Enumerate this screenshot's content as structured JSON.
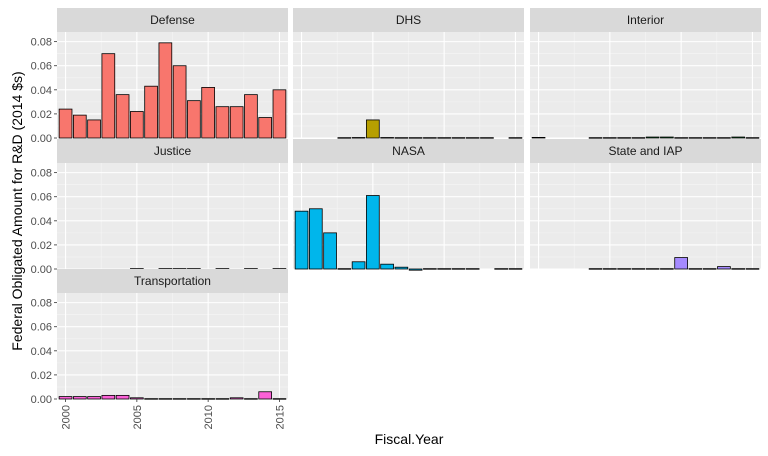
{
  "chart_data": {
    "type": "bar",
    "xlabel": "Fiscal.Year",
    "ylabel": "Federal Obligated Amount for R&D (2014 $s)",
    "ylim": [
      0,
      0.088
    ],
    "yticks": [
      "0.00",
      "0.02",
      "0.04",
      "0.06",
      "0.08"
    ],
    "yticks_values": [
      0,
      0.02,
      0.04,
      0.06,
      0.08
    ],
    "xlim": [
      1999.4,
      2015.6
    ],
    "xticks": [
      "2000",
      "2005",
      "2010",
      "2015"
    ],
    "xticks_values": [
      2000,
      2005,
      2010,
      2015
    ],
    "grid": true,
    "legend": "none",
    "facets": [
      {
        "name": "Defense",
        "color": "#F8766D",
        "x": [
          2000,
          2001,
          2002,
          2003,
          2004,
          2005,
          2006,
          2007,
          2008,
          2009,
          2010,
          2011,
          2012,
          2013,
          2014,
          2015
        ],
        "values": [
          0.024,
          0.019,
          0.015,
          0.07,
          0.036,
          0.022,
          0.043,
          0.079,
          0.06,
          0.031,
          0.042,
          0.026,
          0.026,
          0.036,
          0.017,
          0.04
        ]
      },
      {
        "name": "DHS",
        "color": "#B79F00",
        "x": [
          2003,
          2004,
          2005,
          2006,
          2007,
          2008,
          2009,
          2010,
          2011,
          2012,
          2013,
          2015
        ],
        "values": [
          0.0003,
          0.0004,
          0.015,
          0.0004,
          0.0003,
          0.0003,
          0.0003,
          0.0003,
          0.0003,
          0.0003,
          0.0003,
          0.0003
        ]
      },
      {
        "name": "Interior",
        "color": "#00BA38",
        "x": [
          2000,
          2004,
          2005,
          2006,
          2007,
          2008,
          2009,
          2010,
          2011,
          2012,
          2013,
          2014,
          2015
        ],
        "values": [
          0.0005,
          0.0003,
          0.0003,
          0.0003,
          0.0003,
          0.0008,
          0.0008,
          0.0003,
          0.0003,
          0.0003,
          0.0003,
          0.0008,
          0.0003
        ]
      },
      {
        "name": "Justice",
        "color": "#00BFC4",
        "x": [
          2005,
          2007,
          2008,
          2009,
          2011,
          2013,
          2015
        ],
        "values": [
          0.0003,
          0.0003,
          0.0003,
          0.0003,
          0.0003,
          0.0003,
          0.0003
        ]
      },
      {
        "name": "NASA",
        "color": "#00B6EB",
        "x": [
          2000,
          2001,
          2002,
          2003,
          2004,
          2005,
          2006,
          2007,
          2008,
          2009,
          2010,
          2011,
          2012,
          2014,
          2015
        ],
        "values": [
          0.048,
          0.05,
          0.03,
          0.0003,
          0.006,
          0.061,
          0.004,
          0.0015,
          -0.001,
          0.0003,
          0.0003,
          0.0003,
          0.0003,
          0.0003,
          0.0003
        ]
      },
      {
        "name": "State and IAP",
        "color": "#A58AFF",
        "x": [
          2004,
          2005,
          2006,
          2007,
          2008,
          2009,
          2010,
          2011,
          2012,
          2013,
          2014,
          2015
        ],
        "values": [
          0.0003,
          0.0003,
          0.0003,
          0.0003,
          0.0003,
          0.0003,
          0.0095,
          0.0003,
          0.0003,
          0.002,
          0.0003,
          0.0003
        ]
      },
      {
        "name": "Transportation",
        "color": "#FB61D7",
        "x": [
          2000,
          2001,
          2002,
          2003,
          2004,
          2005,
          2006,
          2007,
          2008,
          2009,
          2010,
          2011,
          2012,
          2013,
          2014,
          2015
        ],
        "values": [
          0.002,
          0.002,
          0.002,
          0.003,
          0.003,
          0.001,
          0.0003,
          0.0003,
          0.0003,
          0.0003,
          0.0003,
          0.0003,
          0.001,
          0.0003,
          0.006,
          0.0003
        ]
      }
    ]
  }
}
